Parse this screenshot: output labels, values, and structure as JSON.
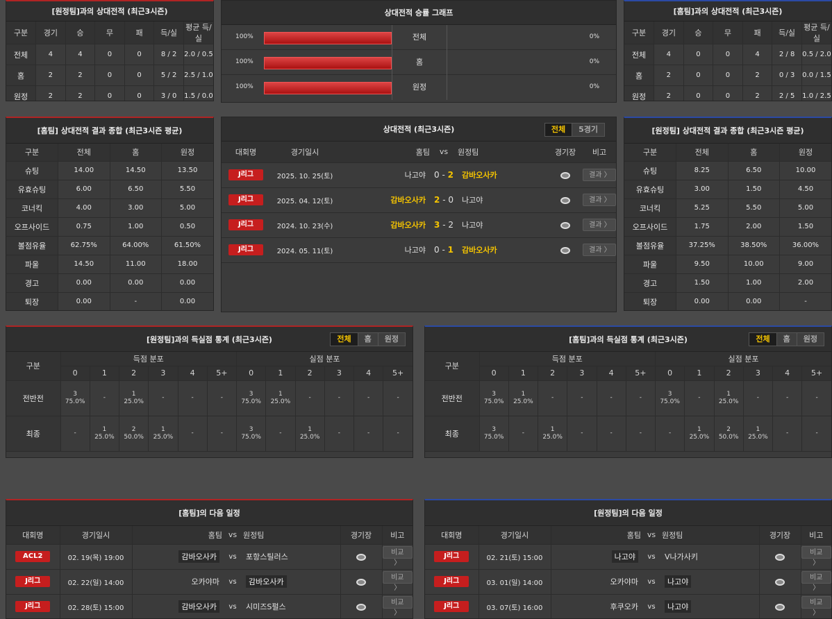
{
  "away_h2h": {
    "title": "[원정팀]과의 상대전적 (최근3시즌)",
    "headers": [
      "구분",
      "경기",
      "승",
      "무",
      "패",
      "득/실",
      "평균 득/실"
    ],
    "rows": [
      [
        "전체",
        "4",
        "4",
        "0",
        "0",
        "8 / 2",
        "2.0 / 0.5"
      ],
      [
        "홈",
        "2",
        "2",
        "0",
        "0",
        "5 / 2",
        "2.5 / 1.0"
      ],
      [
        "원정",
        "2",
        "2",
        "0",
        "0",
        "3 / 0",
        "1.5 / 0.0"
      ]
    ]
  },
  "graph": {
    "title": "상대전적 승률 그래프",
    "rows": [
      {
        "label": "전체",
        "left": "100%",
        "right": "0%",
        "fill": 1.0
      },
      {
        "label": "홈",
        "left": "100%",
        "right": "0%",
        "fill": 1.0
      },
      {
        "label": "원정",
        "left": "100%",
        "right": "0%",
        "fill": 1.0
      }
    ]
  },
  "home_h2h": {
    "title": "[홈팀]과의 상대전적 (최근3시즌)",
    "headers": [
      "구분",
      "경기",
      "승",
      "무",
      "패",
      "득/실",
      "평균 득/실"
    ],
    "rows": [
      [
        "전체",
        "4",
        "0",
        "0",
        "4",
        "2 / 8",
        "0.5 / 2.0"
      ],
      [
        "홈",
        "2",
        "0",
        "0",
        "2",
        "0 / 3",
        "0.0 / 1.5"
      ],
      [
        "원정",
        "2",
        "0",
        "0",
        "2",
        "2 / 5",
        "1.0 / 2.5"
      ]
    ]
  },
  "home_summary": {
    "title": "[홈팀] 상대전적 결과 종합 (최근3시즌 평균)",
    "headers": [
      "구분",
      "전체",
      "홈",
      "원정"
    ],
    "rows": [
      [
        "슈팅",
        "14.00",
        "14.50",
        "13.50"
      ],
      [
        "유효슈팅",
        "6.00",
        "6.50",
        "5.50"
      ],
      [
        "코너킥",
        "4.00",
        "3.00",
        "5.00"
      ],
      [
        "오프사이드",
        "0.75",
        "1.00",
        "0.50"
      ],
      [
        "볼점유율",
        "62.75%",
        "64.00%",
        "61.50%"
      ],
      [
        "파울",
        "14.50",
        "11.00",
        "18.00"
      ],
      [
        "경고",
        "0.00",
        "0.00",
        "0.00"
      ],
      [
        "퇴장",
        "0.00",
        "-",
        "0.00"
      ]
    ]
  },
  "matches": {
    "title": "상대전적 (최근3시즌)",
    "toggle": [
      "전체",
      "5경기"
    ],
    "headers": [
      "대회명",
      "경기일시",
      "홈팀",
      "vs",
      "원정팀",
      "경기장",
      "비고"
    ],
    "result_label": "결과 〉",
    "rows": [
      {
        "league": "J리그",
        "date": "2025. 10. 25(토)",
        "home": "나고야",
        "hs": "0",
        "as": "2",
        "away": "감바오사카",
        "winner": "away"
      },
      {
        "league": "J리그",
        "date": "2025. 04. 12(토)",
        "home": "감바오사카",
        "hs": "2",
        "as": "0",
        "away": "나고야",
        "winner": "home"
      },
      {
        "league": "J리그",
        "date": "2024. 10. 23(수)",
        "home": "감바오사카",
        "hs": "3",
        "as": "2",
        "away": "나고야",
        "winner": "home"
      },
      {
        "league": "J리그",
        "date": "2024. 05. 11(토)",
        "home": "나고야",
        "hs": "0",
        "as": "1",
        "away": "감바오사카",
        "winner": "away"
      }
    ]
  },
  "away_summary": {
    "title": "[원정팀] 상대전적 결과 종합 (최근3시즌 평균)",
    "headers": [
      "구분",
      "전체",
      "홈",
      "원정"
    ],
    "rows": [
      [
        "슈팅",
        "8.25",
        "6.50",
        "10.00"
      ],
      [
        "유효슈팅",
        "3.00",
        "1.50",
        "4.50"
      ],
      [
        "코너킥",
        "5.25",
        "5.50",
        "5.00"
      ],
      [
        "오프사이드",
        "1.75",
        "2.00",
        "1.50"
      ],
      [
        "볼점유율",
        "37.25%",
        "38.50%",
        "36.00%"
      ],
      [
        "파울",
        "9.50",
        "10.00",
        "9.00"
      ],
      [
        "경고",
        "1.50",
        "1.00",
        "2.00"
      ],
      [
        "퇴장",
        "0.00",
        "0.00",
        "-"
      ]
    ]
  },
  "goal_away": {
    "title": "[원정팀]과의 득실점 통계 (최근3시즌)",
    "toggle": [
      "전체",
      "홈",
      "원정"
    ],
    "group_label": "구분",
    "scored_label": "득점 분포",
    "conceded_label": "실점 분포",
    "cols": [
      "0",
      "1",
      "2",
      "3",
      "4",
      "5+"
    ],
    "rows": [
      {
        "label": "전반전",
        "scored": [
          [
            "3",
            "75.0%"
          ],
          [
            "-",
            ""
          ],
          [
            "1",
            "25.0%"
          ],
          [
            "-",
            ""
          ],
          [
            "-",
            ""
          ],
          [
            "-",
            ""
          ]
        ],
        "conceded": [
          [
            "3",
            "75.0%"
          ],
          [
            "1",
            "25.0%"
          ],
          [
            "-",
            ""
          ],
          [
            "-",
            ""
          ],
          [
            "-",
            ""
          ],
          [
            "-",
            ""
          ]
        ]
      },
      {
        "label": "최종",
        "scored": [
          [
            "-",
            ""
          ],
          [
            "1",
            "25.0%"
          ],
          [
            "2",
            "50.0%"
          ],
          [
            "1",
            "25.0%"
          ],
          [
            "-",
            ""
          ],
          [
            "-",
            ""
          ]
        ],
        "conceded": [
          [
            "3",
            "75.0%"
          ],
          [
            "-",
            ""
          ],
          [
            "1",
            "25.0%"
          ],
          [
            "-",
            ""
          ],
          [
            "-",
            ""
          ],
          [
            "-",
            ""
          ]
        ]
      }
    ]
  },
  "goal_home": {
    "title": "[홈팀]과의 득실점 통계 (최근3시즌)",
    "toggle": [
      "전체",
      "홈",
      "원정"
    ],
    "group_label": "구분",
    "scored_label": "득점 분포",
    "conceded_label": "실점 분포",
    "cols": [
      "0",
      "1",
      "2",
      "3",
      "4",
      "5+"
    ],
    "rows": [
      {
        "label": "전반전",
        "scored": [
          [
            "3",
            "75.0%"
          ],
          [
            "1",
            "25.0%"
          ],
          [
            "-",
            ""
          ],
          [
            "-",
            ""
          ],
          [
            "-",
            ""
          ],
          [
            "-",
            ""
          ]
        ],
        "conceded": [
          [
            "3",
            "75.0%"
          ],
          [
            "-",
            ""
          ],
          [
            "1",
            "25.0%"
          ],
          [
            "-",
            ""
          ],
          [
            "-",
            ""
          ],
          [
            "-",
            ""
          ]
        ]
      },
      {
        "label": "최종",
        "scored": [
          [
            "3",
            "75.0%"
          ],
          [
            "-",
            ""
          ],
          [
            "1",
            "25.0%"
          ],
          [
            "-",
            ""
          ],
          [
            "-",
            ""
          ],
          [
            "-",
            ""
          ]
        ],
        "conceded": [
          [
            "-",
            ""
          ],
          [
            "1",
            "25.0%"
          ],
          [
            "2",
            "50.0%"
          ],
          [
            "1",
            "25.0%"
          ],
          [
            "-",
            ""
          ],
          [
            "-",
            ""
          ]
        ]
      }
    ]
  },
  "next_home": {
    "title": "[홈팀]의 다음 일정",
    "headers": [
      "대회명",
      "경기일시",
      "홈팀",
      "vs",
      "원정팀",
      "경기장",
      "비고"
    ],
    "btn": "비교 〉",
    "rows": [
      {
        "league": "ACL2",
        "date": "02. 19(목) 19:00",
        "home": "감바오사카",
        "away": "포항스틸러스",
        "hl": "home"
      },
      {
        "league": "J리그",
        "date": "02. 22(일) 14:00",
        "home": "오카야마",
        "away": "감바오사카",
        "hl": "away"
      },
      {
        "league": "J리그",
        "date": "02. 28(토) 15:00",
        "home": "감바오사카",
        "away": "시미즈S펄스",
        "hl": "home"
      }
    ]
  },
  "next_away": {
    "title": "[원정팀]의 다음 일정",
    "headers": [
      "대회명",
      "경기일시",
      "홈팀",
      "vs",
      "원정팀",
      "경기장",
      "비고"
    ],
    "btn": "비교 〉",
    "rows": [
      {
        "league": "J리그",
        "date": "02. 21(토) 15:00",
        "home": "나고야",
        "away": "V나가사키",
        "hl": "home"
      },
      {
        "league": "J리그",
        "date": "03. 01(일) 14:00",
        "home": "오카야마",
        "away": "나고야",
        "hl": "away"
      },
      {
        "league": "J리그",
        "date": "03. 07(토) 16:00",
        "home": "후쿠오카",
        "away": "나고야",
        "hl": "away"
      }
    ]
  }
}
